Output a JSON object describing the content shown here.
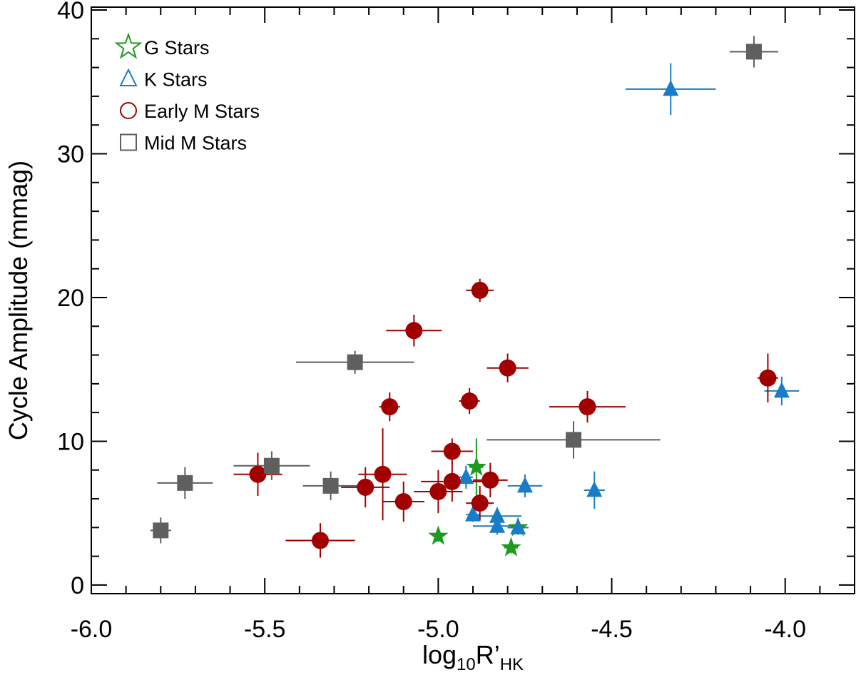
{
  "chart_data": {
    "type": "scatter",
    "title": "",
    "xlabel": {
      "base": "log",
      "sub1": "10",
      "main": "R’",
      "sub2": "HK"
    },
    "ylabel": "Cycle Amplitude (mmag)",
    "xlim": [
      -6.0,
      -3.8
    ],
    "ylim": [
      -0.6,
      40.2
    ],
    "x_ticks": [
      -6.0,
      -5.5,
      -5.0,
      -4.5,
      -4.0
    ],
    "x_tick_labels": [
      "-6.0",
      "-5.5",
      "-5.0",
      "-4.5",
      "-4.0"
    ],
    "y_ticks": [
      0,
      10,
      20,
      30,
      40
    ],
    "y_tick_labels": [
      "0",
      "10",
      "20",
      "30",
      "40"
    ],
    "x_minor_step": 0.1,
    "y_minor_step": 2,
    "grid": false,
    "legend_position": "top-left",
    "series": [
      {
        "name": "G Stars",
        "marker": "star",
        "color": "#1e9a1e",
        "points": [
          {
            "x": -5.0,
            "y": 3.4,
            "xerr": 0.0,
            "yerr": 0.4
          },
          {
            "x": -4.89,
            "y": 8.2,
            "xerr": 0.02,
            "yerr": 2.0
          },
          {
            "x": -4.79,
            "y": 2.6,
            "xerr": 0.02,
            "yerr": 0.4
          },
          {
            "x": -4.77,
            "y": 4.0,
            "xerr": 0.03,
            "yerr": 0.4
          }
        ]
      },
      {
        "name": "K Stars",
        "marker": "triangle",
        "color": "#1a7cc6",
        "points": [
          {
            "x": -4.33,
            "y": 34.5,
            "xerr": 0.13,
            "yerr": 1.8
          },
          {
            "x": -4.01,
            "y": 13.5,
            "xerr": 0.05,
            "yerr": 1.0
          },
          {
            "x": -4.55,
            "y": 6.6,
            "xerr": 0.03,
            "yerr": 1.3
          },
          {
            "x": -4.75,
            "y": 6.9,
            "xerr": 0.05,
            "yerr": 0.8
          },
          {
            "x": -4.92,
            "y": 7.5,
            "xerr": 0.02,
            "yerr": 0.8
          },
          {
            "x": -4.9,
            "y": 4.9,
            "xerr": 0.02,
            "yerr": 0.5
          },
          {
            "x": -4.83,
            "y": 4.8,
            "xerr": 0.07,
            "yerr": 0.6
          },
          {
            "x": -4.83,
            "y": 4.1,
            "xerr": 0.07,
            "yerr": 0.6
          },
          {
            "x": -4.77,
            "y": 4.0,
            "xerr": 0.03,
            "yerr": 0.5
          }
        ]
      },
      {
        "name": "Early M Stars",
        "marker": "circle",
        "color": "#a00000",
        "points": [
          {
            "x": -4.88,
            "y": 20.5,
            "xerr": 0.04,
            "yerr": 0.8
          },
          {
            "x": -5.07,
            "y": 17.7,
            "xerr": 0.08,
            "yerr": 1.1
          },
          {
            "x": -4.8,
            "y": 15.1,
            "xerr": 0.06,
            "yerr": 1.0
          },
          {
            "x": -5.14,
            "y": 12.4,
            "xerr": 0.03,
            "yerr": 1.0
          },
          {
            "x": -4.91,
            "y": 12.8,
            "xerr": 0.03,
            "yerr": 0.9
          },
          {
            "x": -4.57,
            "y": 12.4,
            "xerr": 0.11,
            "yerr": 1.1
          },
          {
            "x": -4.05,
            "y": 14.4,
            "xerr": 0.03,
            "yerr": 1.7
          },
          {
            "x": -5.52,
            "y": 7.7,
            "xerr": 0.07,
            "yerr": 1.5
          },
          {
            "x": -5.16,
            "y": 7.7,
            "xerr": 0.07,
            "yerr": 3.2
          },
          {
            "x": -5.21,
            "y": 6.8,
            "xerr": 0.07,
            "yerr": 1.4
          },
          {
            "x": -4.96,
            "y": 9.3,
            "xerr": 0.06,
            "yerr": 0.9
          },
          {
            "x": -4.96,
            "y": 7.2,
            "xerr": 0.09,
            "yerr": 1.4
          },
          {
            "x": -5.0,
            "y": 6.5,
            "xerr": 0.07,
            "yerr": 1.5
          },
          {
            "x": -4.85,
            "y": 7.3,
            "xerr": 0.05,
            "yerr": 1.2
          },
          {
            "x": -4.88,
            "y": 5.7,
            "xerr": 0.04,
            "yerr": 1.2
          },
          {
            "x": -5.1,
            "y": 5.8,
            "xerr": 0.06,
            "yerr": 1.4
          },
          {
            "x": -5.34,
            "y": 3.1,
            "xerr": 0.1,
            "yerr": 1.2
          }
        ]
      },
      {
        "name": "Mid M Stars",
        "marker": "square",
        "color": "#5f5f5f",
        "points": [
          {
            "x": -4.09,
            "y": 37.1,
            "xerr": 0.07,
            "yerr": 1.1
          },
          {
            "x": -5.24,
            "y": 15.5,
            "xerr": 0.17,
            "yerr": 0.8
          },
          {
            "x": -4.61,
            "y": 10.1,
            "xerr": 0.25,
            "yerr": 1.3
          },
          {
            "x": -5.48,
            "y": 8.3,
            "xerr": 0.11,
            "yerr": 1.0
          },
          {
            "x": -5.31,
            "y": 6.9,
            "xerr": 0.08,
            "yerr": 1.0
          },
          {
            "x": -5.73,
            "y": 7.1,
            "xerr": 0.08,
            "yerr": 1.1
          },
          {
            "x": -5.8,
            "y": 3.8,
            "xerr": 0.03,
            "yerr": 0.9
          }
        ]
      }
    ]
  }
}
